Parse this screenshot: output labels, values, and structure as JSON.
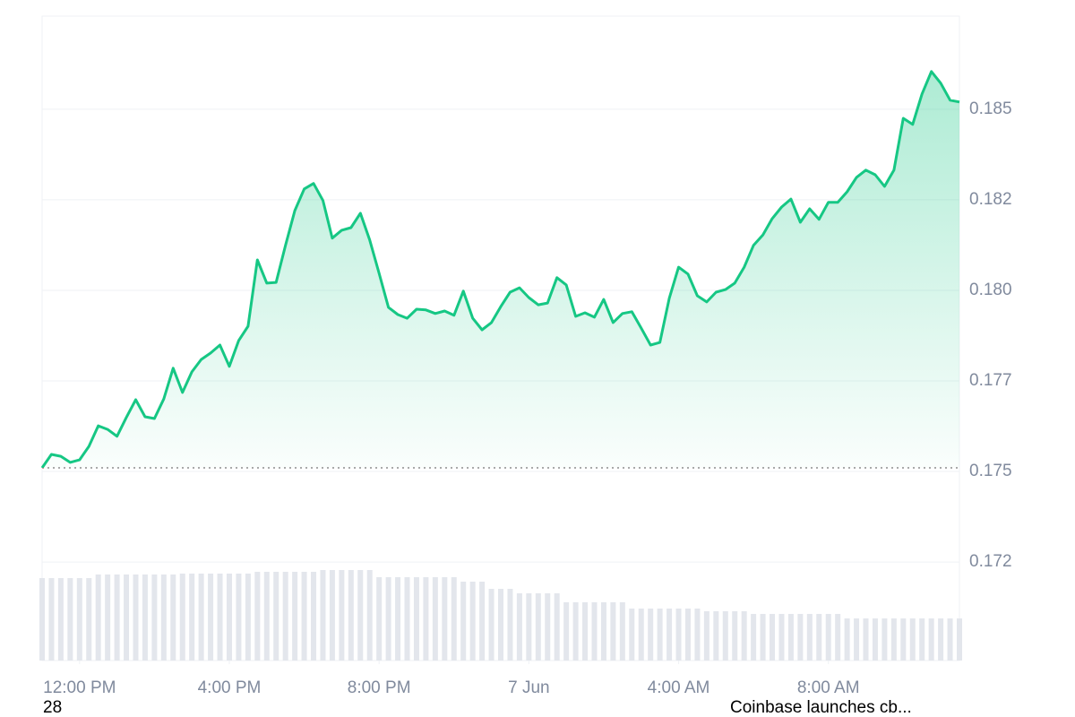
{
  "chart_data": {
    "type": "line",
    "x": [
      11,
      11.25,
      11.5,
      11.75,
      12,
      12.25,
      12.5,
      12.75,
      13,
      13.25,
      13.5,
      13.75,
      14,
      14.25,
      14.5,
      14.75,
      15,
      15.25,
      15.5,
      15.75,
      16,
      16.25,
      16.5,
      16.75,
      17,
      17.25,
      17.5,
      17.75,
      18,
      18.25,
      18.5,
      18.75,
      19,
      19.25,
      19.5,
      19.75,
      20,
      20.25,
      20.5,
      20.75,
      21,
      21.25,
      21.5,
      21.75,
      22,
      22.25,
      22.5,
      22.75,
      23,
      23.25,
      23.5,
      23.75,
      24,
      24.25,
      24.5,
      24.75,
      25,
      25.25,
      25.5,
      25.75,
      26,
      26.25,
      26.5,
      26.75,
      27,
      27.25,
      27.5,
      27.75,
      28,
      28.25,
      28.5,
      28.75,
      29,
      29.25,
      29.5,
      29.75,
      30,
      30.25,
      30.5,
      30.75,
      31,
      31.25,
      31.5,
      31.75,
      32,
      32.25,
      32.5,
      32.75,
      33,
      33.25,
      33.5,
      33.75,
      34,
      34.25,
      34.5,
      34.75,
      35,
      35.25,
      35.5
    ],
    "values": [
      0.1751,
      0.17547,
      0.17542,
      0.17525,
      0.17532,
      0.17569,
      0.17626,
      0.17616,
      0.17597,
      0.17649,
      0.17698,
      0.17651,
      0.17646,
      0.177,
      0.17785,
      0.17718,
      0.17775,
      0.17809,
      0.17827,
      0.17849,
      0.1779,
      0.17861,
      0.17901,
      0.18084,
      0.1802,
      0.18022,
      0.18124,
      0.1822,
      0.1828,
      0.18295,
      0.18248,
      0.18144,
      0.18166,
      0.18173,
      0.18213,
      0.18139,
      0.18047,
      0.17953,
      0.17933,
      0.17923,
      0.17948,
      0.17946,
      0.17936,
      0.17943,
      0.17931,
      0.17998,
      0.17923,
      0.17891,
      0.17911,
      0.17955,
      0.17995,
      0.18007,
      0.1798,
      0.1796,
      0.17965,
      0.18035,
      0.18015,
      0.17928,
      0.17938,
      0.17926,
      0.17975,
      0.17911,
      0.17936,
      0.17941,
      0.17896,
      0.17849,
      0.17856,
      0.17978,
      0.18064,
      0.18045,
      0.17985,
      0.17968,
      0.17995,
      0.18002,
      0.1802,
      0.18064,
      0.18124,
      0.18153,
      0.18198,
      0.1823,
      0.18252,
      0.18188,
      0.18225,
      0.18196,
      0.18243,
      0.18243,
      0.18272,
      0.18312,
      0.18332,
      0.18319,
      0.18287,
      0.18332,
      0.18475,
      0.18458,
      0.18542,
      0.18604,
      0.18572,
      0.18525,
      0.1852
    ],
    "volume": [
      92,
      92,
      92,
      92,
      92,
      92,
      96,
      96,
      96,
      96,
      96,
      96,
      96,
      96,
      96,
      97,
      97,
      97,
      97,
      97,
      97,
      97,
      97,
      99,
      99,
      99,
      99,
      99,
      99,
      99,
      101,
      101,
      101,
      101,
      101,
      101,
      93,
      93,
      93,
      93,
      93,
      93,
      93,
      93,
      93,
      88,
      88,
      88,
      80,
      80,
      80,
      75,
      75,
      75,
      75,
      75,
      65,
      65,
      65,
      65,
      65,
      65,
      65,
      58,
      58,
      58,
      58,
      58,
      58,
      58,
      58,
      55,
      55,
      55,
      55,
      55,
      52,
      52,
      52,
      52,
      52,
      52,
      52,
      52,
      52,
      52,
      47,
      47,
      47,
      47,
      47,
      47,
      47,
      47,
      47,
      47,
      47,
      47,
      47
    ],
    "color": "#16c784",
    "down_color": "#ea3943",
    "volume_color": "#e3e6ec",
    "baseline": 0.1751,
    "xlim": [
      11,
      35.5
    ],
    "xticks": [
      {
        "value": 12,
        "label": "12:00 PM"
      },
      {
        "value": 16,
        "label": "4:00 PM"
      },
      {
        "value": 20,
        "label": "8:00 PM"
      },
      {
        "value": 24,
        "label": "7 Jun"
      },
      {
        "value": 28,
        "label": "4:00 AM"
      },
      {
        "value": 32,
        "label": "8:00 AM"
      }
    ],
    "ylim": [
      0.16978,
      0.18757
    ],
    "yticks": [
      {
        "value": 0.1725,
        "label": "0.172"
      },
      0.175,
      {
        "value": 0.1775,
        "label": "0.177"
      },
      {
        "value": 0.18,
        "label": "0.180"
      },
      {
        "value": 0.1825,
        "label": "0.182"
      },
      0.185
    ],
    "grid": true,
    "annotations": [
      "28",
      "Coinbase launches cb..."
    ]
  }
}
